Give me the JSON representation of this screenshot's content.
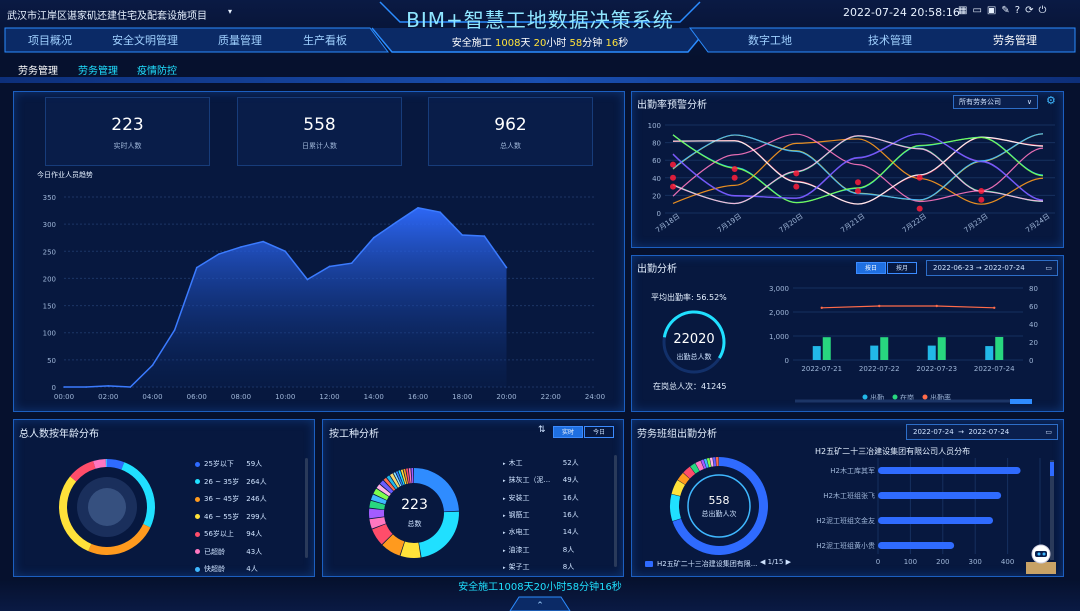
{
  "header": {
    "project": "武汉市江岸区谌家矶还建住宅及配套设施项目",
    "title": "BIM+智慧工地数据决策系统",
    "safe_prefix": "安全施工",
    "safe_days": "1008",
    "safe_day_unit": "天",
    "safe_hours": "20",
    "safe_hour_unit": "小时",
    "safe_minutes": "58",
    "safe_min_unit": "分钟",
    "safe_seconds": "16",
    "safe_sec_unit": "秒",
    "datetime": "2022-07-24 20:58:16"
  },
  "nav_left": [
    "项目概况",
    "安全文明管理",
    "质量管理",
    "生产看板"
  ],
  "nav_right": [
    "数字工地",
    "技术管理",
    "劳务管理"
  ],
  "subtabs": [
    "劳务管理",
    "劳务管理",
    "疫情防控"
  ],
  "kpis": [
    {
      "value": "223",
      "label": "实时人数"
    },
    {
      "value": "558",
      "label": "日累计人数"
    },
    {
      "value": "962",
      "label": "总人数"
    }
  ],
  "trend": {
    "title": "今日作业人员趋势",
    "yticks": [
      "350",
      "300",
      "250",
      "200",
      "150",
      "100",
      "50",
      "0"
    ],
    "xticks": [
      "00:00",
      "02:00",
      "04:00",
      "06:00",
      "08:00",
      "10:00",
      "12:00",
      "14:00",
      "16:00",
      "18:00",
      "20:00",
      "22:00",
      "24:00"
    ]
  },
  "chart_data": [
    {
      "type": "area",
      "title": "今日作业人员趋势",
      "x": [
        "00:00",
        "01:00",
        "02:00",
        "03:00",
        "04:00",
        "05:00",
        "06:00",
        "07:00",
        "08:00",
        "09:00",
        "10:00",
        "11:00",
        "12:00",
        "13:00",
        "14:00",
        "15:00",
        "16:00",
        "17:00",
        "18:00",
        "19:00",
        "20:00"
      ],
      "values": [
        0,
        0,
        2,
        0,
        40,
        105,
        220,
        245,
        258,
        268,
        250,
        198,
        222,
        228,
        275,
        303,
        330,
        322,
        280,
        278,
        220
      ],
      "ylim": [
        0,
        350
      ]
    },
    {
      "type": "bar",
      "title": "出勤分析",
      "categories": [
        "2022-07-21",
        "2022-07-22",
        "2022-07-23",
        "2022-07-24"
      ],
      "series": [
        {
          "name": "出勤",
          "values": [
            580,
            600,
            600,
            580
          ]
        },
        {
          "name": "在岗",
          "values": [
            950,
            950,
            950,
            960
          ]
        }
      ],
      "rate": {
        "name": "出勤率",
        "values": [
          58,
          60,
          60,
          58
        ]
      },
      "ylim": [
        0,
        3000
      ],
      "y2lim": [
        0,
        80
      ]
    },
    {
      "type": "pie",
      "title": "总人数按年龄分布",
      "categories": [
        "25岁以下",
        "26 ~ 35岁",
        "36 ~ 45岁",
        "46 ~ 55岁",
        "56岁以上",
        "已超龄",
        "快超龄"
      ],
      "values": [
        59,
        264,
        246,
        299,
        94,
        43,
        4
      ]
    },
    {
      "type": "pie",
      "title": "按工种分析",
      "categories": [
        "木工",
        "抹灰工（泥...",
        "安装工",
        "钢筋工",
        "水电工",
        "油漆工",
        "架子工"
      ],
      "values": [
        52,
        49,
        16,
        16,
        14,
        8,
        8
      ]
    },
    {
      "type": "bar",
      "title": "H2五矿二十三冶建设集团有限公司人员分布",
      "categories": [
        "H2木工库其军",
        "H2木工班组张飞",
        "H2泥工班组文金友",
        "H2泥工班组黄小贵"
      ],
      "values": [
        440,
        380,
        355,
        235
      ],
      "xlim": [
        0,
        500
      ]
    }
  ],
  "alert": {
    "title": "出勤率预警分析",
    "filter": "所有劳务公司",
    "yticks": [
      "100",
      "80",
      "60",
      "40",
      "20",
      "0"
    ],
    "xticks": [
      "7月18日",
      "7月19日",
      "7月20日",
      "7月21日",
      "7月22日",
      "7月23日",
      "7月24日"
    ]
  },
  "attendance": {
    "title": "出勤分析",
    "btn_day": "按日",
    "btn_month": "按月",
    "date_from": "2022-06-23",
    "date_to": "2022-07-24",
    "arrow": "→",
    "rate_label": "平均出勤率:",
    "rate_value": "56.52%",
    "total": "22020",
    "total_label": "出勤总人数",
    "onsite_label": "在岗总人次：",
    "onsite_value": "41245",
    "yticks": [
      "3,000",
      "2,000",
      "1,000",
      "0"
    ],
    "y2ticks": [
      "80",
      "60",
      "40",
      "20",
      "0"
    ],
    "legend": [
      "出勤",
      "在岗",
      "出勤率"
    ]
  },
  "age": {
    "title": "总人数按年龄分布",
    "items": [
      {
        "label": "25岁以下",
        "value": "59人",
        "color": "#2f6bff"
      },
      {
        "label": "26 ~ 35岁",
        "value": "264人",
        "color": "#20e0ff"
      },
      {
        "label": "36 ~ 45岁",
        "value": "246人",
        "color": "#ff9a1e"
      },
      {
        "label": "46 ~ 55岁",
        "value": "299人",
        "color": "#ffe23a"
      },
      {
        "label": "56岁以上",
        "value": "94人",
        "color": "#ff4d6a"
      },
      {
        "label": "已超龄",
        "value": "43人",
        "color": "#ff77c0"
      },
      {
        "label": "快超龄",
        "value": "4人",
        "color": "#3fb8ff"
      }
    ]
  },
  "trade": {
    "title": "按工种分析",
    "btn_live": "实时",
    "btn_today": "今日",
    "center_value": "223",
    "center_label": "总数",
    "items": [
      {
        "label": "木工",
        "value": "52人"
      },
      {
        "label": "抹灰工（泥...",
        "value": "49人"
      },
      {
        "label": "安装工",
        "value": "16人"
      },
      {
        "label": "钢筋工",
        "value": "16人"
      },
      {
        "label": "水电工",
        "value": "14人"
      },
      {
        "label": "油漆工",
        "value": "8人"
      },
      {
        "label": "架子工",
        "value": "8人"
      }
    ]
  },
  "team": {
    "title": "劳务班组出勤分析",
    "date_from": "2022-07-24",
    "date_to": "2022-07-24",
    "arrow": "→",
    "center_value": "558",
    "center_label": "总出勤人次",
    "legend_item": "H2五矿二十三冶建设集团有限...",
    "pager": "1/15",
    "bar_title": "H2五矿二十三冶建设集团有限公司人员分布",
    "xticks": [
      "0",
      "100",
      "200",
      "300",
      "400",
      "500"
    ]
  },
  "footer": {
    "safe_text": "安全施工1008天20小时58分钟16秒"
  },
  "colors": {
    "accent": "#2f6bff",
    "cyan": "#20e0ff",
    "bg": "#06112e",
    "border": "#1c5fc0"
  }
}
